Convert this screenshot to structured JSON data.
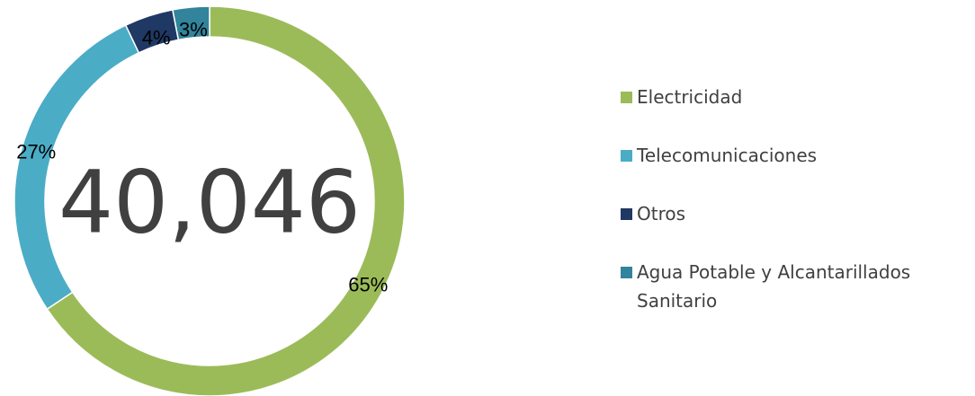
{
  "chart_data": {
    "type": "donut",
    "center_text": "40,046",
    "categories": [
      "Electricidad",
      "Telecomunicaciones",
      "Otros",
      "Agua Potable y Alcantarillados Sanitario"
    ],
    "values": [
      65,
      27,
      4,
      3
    ],
    "value_labels": [
      "65%",
      "27%",
      "4%",
      "3%"
    ],
    "colors": [
      "#9bbb59",
      "#4bacc6",
      "#1f3864",
      "#31849b"
    ],
    "legend": "right"
  }
}
